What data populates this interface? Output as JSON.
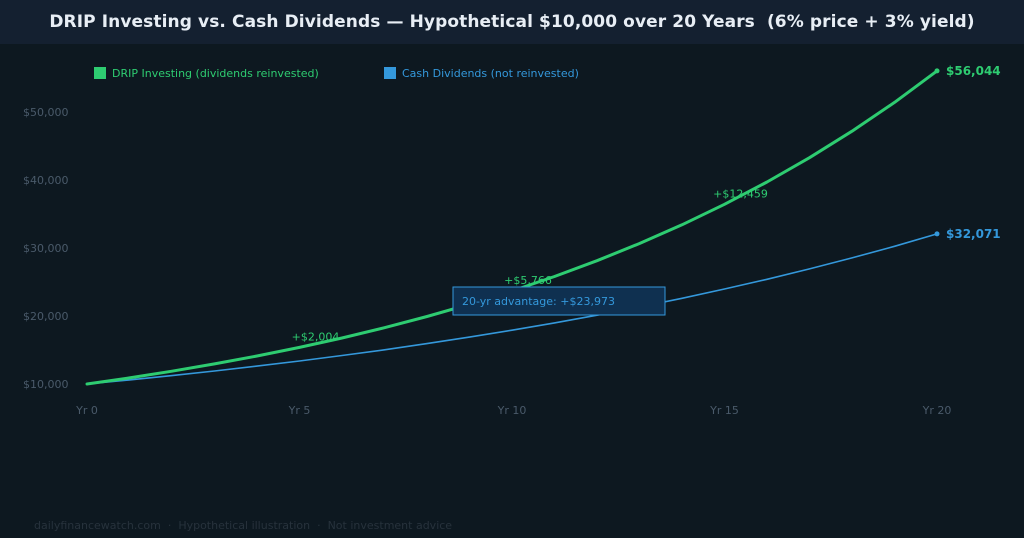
{
  "header": {
    "title": "DRIP Investing vs. Cash Dividends — Hypothetical $10,000 over 20 Years  (6% price + 3% yield)"
  },
  "footer": {
    "text": "dailyfinancewatch.com  ·  Hypothetical illustration  ·  Not investment advice"
  },
  "colors": {
    "drip": "#2ecc71",
    "cash": "#3498db",
    "background": "#0d1820",
    "header": "#142030",
    "axis_text": "#4a5a6a",
    "callout_bg": "#0f3050",
    "callout_border": "#3498db"
  },
  "chart_data": {
    "type": "line",
    "title": "DRIP Investing vs. Cash Dividends — Hypothetical $10,000 over 20 Years  (6% price + 3% yield)",
    "xlabel": "",
    "ylabel": "",
    "xlim": [
      0,
      20
    ],
    "ylim": [
      8000,
      58000
    ],
    "x_ticks": [
      {
        "value": 0,
        "label": "Yr 0"
      },
      {
        "value": 5,
        "label": "Yr 5"
      },
      {
        "value": 10,
        "label": "Yr 10"
      },
      {
        "value": 15,
        "label": "Yr 15"
      },
      {
        "value": 20,
        "label": "Yr 20"
      }
    ],
    "y_ticks": [
      {
        "value": 10000,
        "label": "$10,000"
      },
      {
        "value": 20000,
        "label": "$20,000"
      },
      {
        "value": 30000,
        "label": "$30,000"
      },
      {
        "value": 40000,
        "label": "$40,000"
      },
      {
        "value": 50000,
        "label": "$50,000"
      }
    ],
    "grid": false,
    "legend_position": "top-left",
    "x": [
      0,
      1,
      2,
      3,
      4,
      5,
      6,
      7,
      8,
      9,
      10,
      11,
      12,
      13,
      14,
      15,
      16,
      17,
      18,
      19,
      20
    ],
    "series": [
      {
        "name": "DRIP Investing (dividends reinvested)",
        "color_key": "drip",
        "values": [
          10000,
          10900,
          11881,
          12950,
          14116,
          15386,
          16771,
          18280,
          19926,
          21719,
          23674,
          25804,
          28127,
          30658,
          33417,
          36425,
          39703,
          43276,
          47171,
          51417,
          56044
        ],
        "end_label": "$56,044"
      },
      {
        "name": "Cash Dividends (not reinvested)",
        "color_key": "cash",
        "values": [
          10000,
          10600,
          11236,
          11910,
          12625,
          13382,
          14185,
          15036,
          15938,
          16895,
          17908,
          18983,
          20122,
          21329,
          22609,
          23966,
          25404,
          26928,
          28543,
          30256,
          32071
        ],
        "end_label": "$32,071"
      }
    ],
    "annotations": [
      {
        "x": 5,
        "y": 15386,
        "text": "+$2,004"
      },
      {
        "x": 10,
        "y": 23674,
        "text": "+$5,766"
      },
      {
        "x": 15,
        "y": 36425,
        "text": "+$12,459"
      }
    ],
    "callout": {
      "text": "20-yr advantage: +$23,973"
    }
  }
}
